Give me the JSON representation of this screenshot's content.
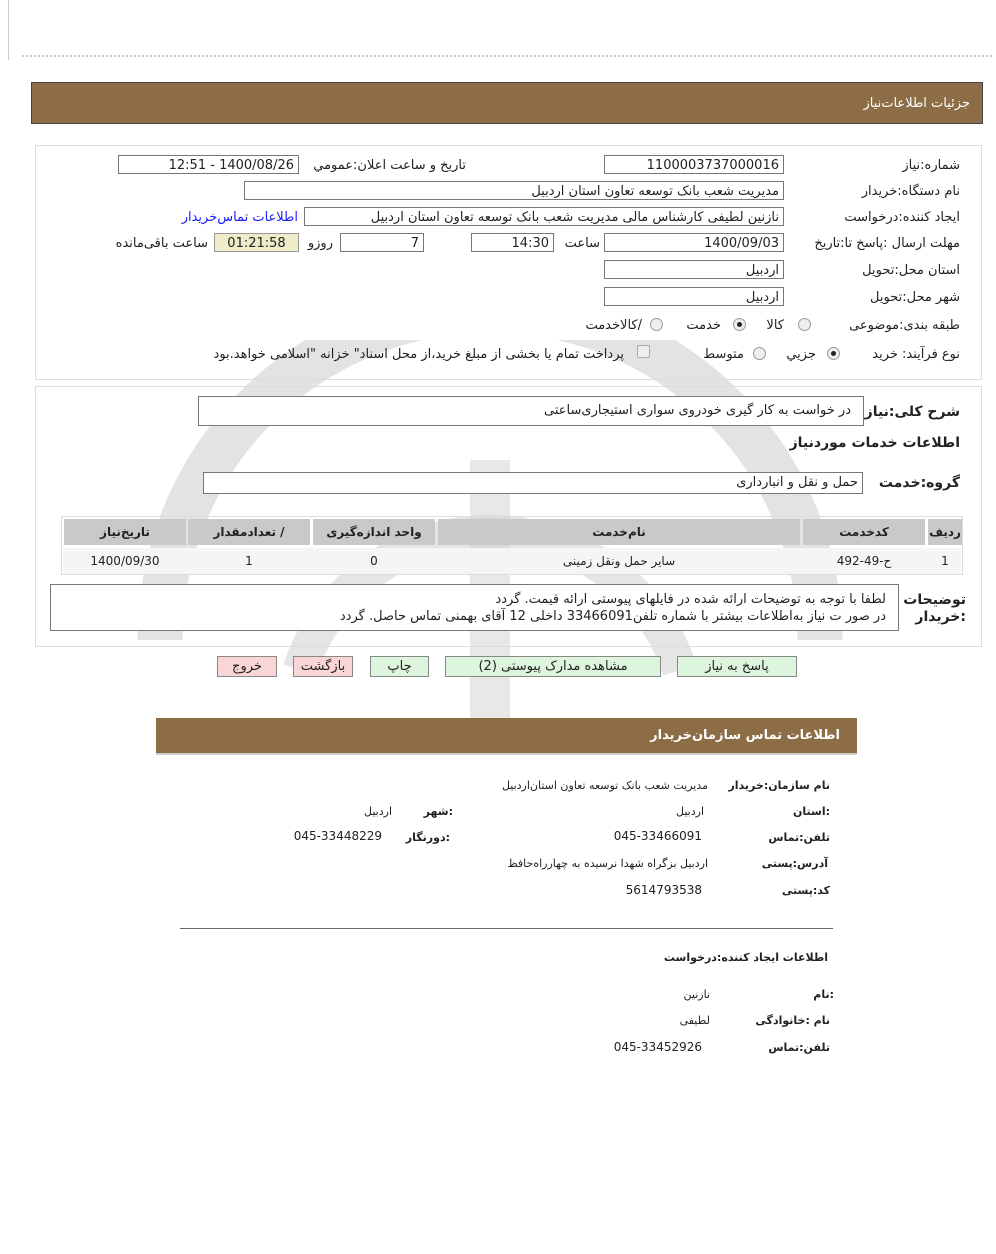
{
  "colors": {
    "header_bg": "#8c6d45",
    "button_green": "#ddf5dd",
    "button_red": "#f9d5d5",
    "timer_bg": "#eeecc9",
    "link": "#1a1aff"
  },
  "header": {
    "title": "جزئیات   اطلاعات‌نیاز"
  },
  "form": {
    "need_number_label": "شماره:نیاز",
    "need_number": "1100003737000016",
    "announce_label": "تاریخ و ساعت اعلان:عمومي",
    "announce_value": "1400/08/26 - 12:51",
    "buyer_org_label": "نام دستگاه:خریدار",
    "buyer_org": "مدیریت شعب بانک توسعه تعاون استان اردبیل",
    "creator_label": "ایجاد کننده:درخواست",
    "creator": "نازنین لطیفی کارشناس مالی مدیریت شعب بانک توسعه تعاون استان اردبیل",
    "contact_link": "اطلاعات تماس‌خریدار",
    "deadline_label": "مهلت ارسال :پاسخ تا:تاریخ",
    "deadline_date": "1400/09/03",
    "time_label": "ساعت",
    "deadline_time": "14:30",
    "days_value": "7",
    "days_label": "روزو",
    "remaining_time": "01:21:58",
    "remaining_label": "ساعت باقی‌مانده",
    "province_label": "استان محل:تحویل",
    "province": "اردبیل",
    "city_label": "شهر محل:تحویل",
    "city": "اردبیل",
    "category_label": "طبقه بندی:موضوعی",
    "category_options": [
      {
        "label": "کالا",
        "checked": false
      },
      {
        "label": "خدمت",
        "checked": true
      },
      {
        "label": "/کالاخدمت",
        "checked": false
      }
    ],
    "process_label": "نوع فرآیند: خرید",
    "process_options": [
      {
        "label": "جزیي",
        "checked": true
      },
      {
        "label": "متوسط",
        "checked": false
      }
    ],
    "payment_checkbox_label": "پرداخت تمام یا بخشی از مبلغ خرید،از محل اسناد\" خزانه \"اسلامی خواهد.بود",
    "payment_checked": false
  },
  "details": {
    "summary_label": "شرح کلی:نیاز",
    "summary": "در خواست به کار گیری خودروی سواری استیجاری‌ساعتی",
    "services_title": "اطلاعات خدمات موردنیاز",
    "group_label": "گروه:خدمت",
    "group": "حمل و نقل و انبارداری",
    "table": {
      "headers": [
        "ردیف",
        "کدخدمت",
        "نام‌خدمت",
        "واحد  اندازه‌گیری",
        "/ تعدادمقدار",
        "تاریخ‌نیاز"
      ],
      "rows": [
        [
          "1",
          "ح-49-492",
          "سایر حمل ونقل زمینی",
          "0",
          "1",
          "1400/09/30"
        ]
      ]
    },
    "notes_label": "توضیحات :خریدار",
    "notes_line1": "لطفا با توجه به توضیحات ارائه شده در فایلهای پیوستی ارائه قیمت. گردد",
    "notes_line2": "در صور ت نیاز به‌اطلاعات بیشتر با  شماره تلفن33466091 داخلی 12 آقای بهمنی تماس حاصل. گردد"
  },
  "buttons": {
    "reply": "پاسخ به نیاز",
    "attachments": "مشاهده مدارک پیوستی (2)",
    "print": "چاپ",
    "back": "بازگشت",
    "exit": "خروج"
  },
  "contact": {
    "title": "اطلاعات  تماس سازمان‌خریدار",
    "org_label": "نام سازمان:خریدار",
    "org": "مدیریت شعب بانک توسعه تعاون استان‌اردبیل",
    "province_label": ":استان",
    "province": "اردبیل",
    "city_label": ":شهر",
    "city": "اردبیل",
    "phone_label": "تلفن:تماس",
    "phone": "045-33466091",
    "fax_label": ":دورنگار",
    "fax": "045-33448229",
    "address_label": "آدرس:پستی",
    "address": "اردبیل بزگراه  شهدا نرسیده به چهارراه‌حافظ",
    "postal_label": "کد:پستی",
    "postal": "5614793538",
    "creator_title": "اطلاعات  ایجاد کننده:درخواست",
    "name_label": ":نام",
    "name": "نازنین",
    "family_label": "نام :خانوادگی",
    "family": "لطیفی",
    "creator_phone_label": "تلفن:تماس",
    "creator_phone": "045-33452926"
  }
}
